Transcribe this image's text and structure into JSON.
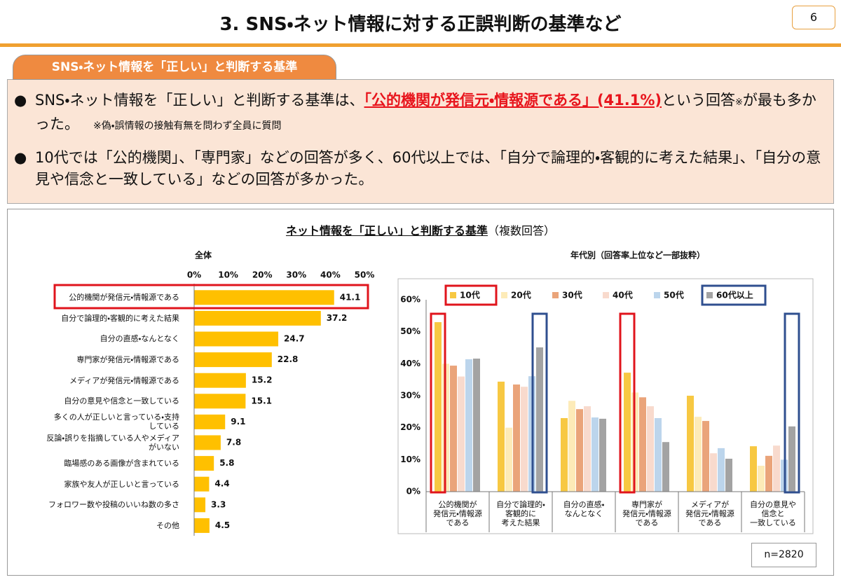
{
  "header": {
    "title": "3. SNS・ネット情報に対する正誤判断の基準など",
    "page_number": "6"
  },
  "section_tab": "SNS・ネット情報を「正しい」と判断する基準",
  "bullets": [
    {
      "parts": [
        "SNS・ネット情報を「正しい」と判断する基準は、",
        "「公的機関が発信元・情報源である」(41.1%)",
        "という回答",
        "※",
        "が最も多かった。"
      ],
      "note": "※偽・誤情報の接触有無を問わず全員に質問"
    },
    {
      "text": "10代では「公的機関」、「専門家」などの回答が多く、60代以上では、「自分で論理的・客観的に考えた結果」、「自分の意見や信念と一致している」などの回答が多かった。"
    }
  ],
  "figure": {
    "title": "ネット情報を「正しい」と判断する基準",
    "subtitle": "（複数回答）",
    "sample": "n=2820"
  },
  "chart_data": [
    {
      "type": "hbar",
      "title": "全体",
      "categories": [
        "公的機関が発信元・情報源である",
        "自分で論理的・客観的に考えた結果",
        "自分の直感・なんとなく",
        "専門家が発信元・情報源である",
        "メディアが発信元・情報源である",
        "自分の意見や信念と一致している",
        "多くの人が正しいと言っている・支持している",
        "反論・誤りを指摘している人やメディアがいない",
        "臨場感のある画像が含まれている",
        "家族や友人が正しいと言っている",
        "フォロワー数や投稿のいいね数の多さ",
        "その他"
      ],
      "values": [
        41.1,
        37.2,
        24.7,
        22.8,
        15.2,
        15.1,
        9.1,
        7.8,
        5.8,
        4.4,
        3.3,
        4.5
      ],
      "color": "#ffc000",
      "xlim": [
        0,
        50
      ],
      "xticks": [
        {
          "value": 0,
          "label": "0%"
        },
        {
          "value": 10,
          "label": "10%"
        },
        {
          "value": 20,
          "label": "20%"
        },
        {
          "value": 30,
          "label": "30%"
        },
        {
          "value": 40,
          "label": "40%"
        },
        {
          "value": 50,
          "label": "50%"
        }
      ]
    },
    {
      "type": "bar",
      "title": "年代別（回答率上位など一部抜粋）",
      "categories": [
        "公的機関が\n発信元・情報源\nである",
        "自分で論理的・\n客観的に\n考えた結果",
        "自分の直感・\nなんとなく",
        "専門家が\n発信元・情報源\nである",
        "メディアが\n発信元・情報源\nである",
        "自分の意見や\n信念と\n一致している"
      ],
      "series": [
        {
          "name": "10代",
          "color": "#f7c842",
          "values": [
            53,
            34.4,
            23,
            37.2,
            30,
            14.2
          ]
        },
        {
          "name": "20代",
          "color": "#fdebb8",
          "values": [
            40,
            20,
            28.4,
            31,
            23.4,
            8.1
          ]
        },
        {
          "name": "30代",
          "color": "#eaa47a",
          "values": [
            39.4,
            33.5,
            25.8,
            29.5,
            22.1,
            11.2
          ]
        },
        {
          "name": "40代",
          "color": "#f8dacd",
          "values": [
            36,
            32.8,
            26.7,
            26.7,
            12,
            14.4
          ]
        },
        {
          "name": "50代",
          "color": "#bcd5ec",
          "values": [
            41.4,
            36.1,
            23.2,
            23,
            13.6,
            10
          ]
        },
        {
          "name": "60代以上",
          "color": "#a3a3a3",
          "values": [
            41.6,
            45.1,
            22.8,
            15.5,
            10.3,
            20.4
          ]
        }
      ],
      "ylim": [
        0,
        60
      ],
      "yticks": [
        {
          "value": 0,
          "label": "0%"
        },
        {
          "value": 10,
          "label": "10%"
        },
        {
          "value": 20,
          "label": "20%"
        },
        {
          "value": 30,
          "label": "30%"
        },
        {
          "value": 40,
          "label": "40%"
        },
        {
          "value": 50,
          "label": "50%"
        },
        {
          "value": 60,
          "label": "60%"
        }
      ],
      "legend": "top"
    }
  ]
}
